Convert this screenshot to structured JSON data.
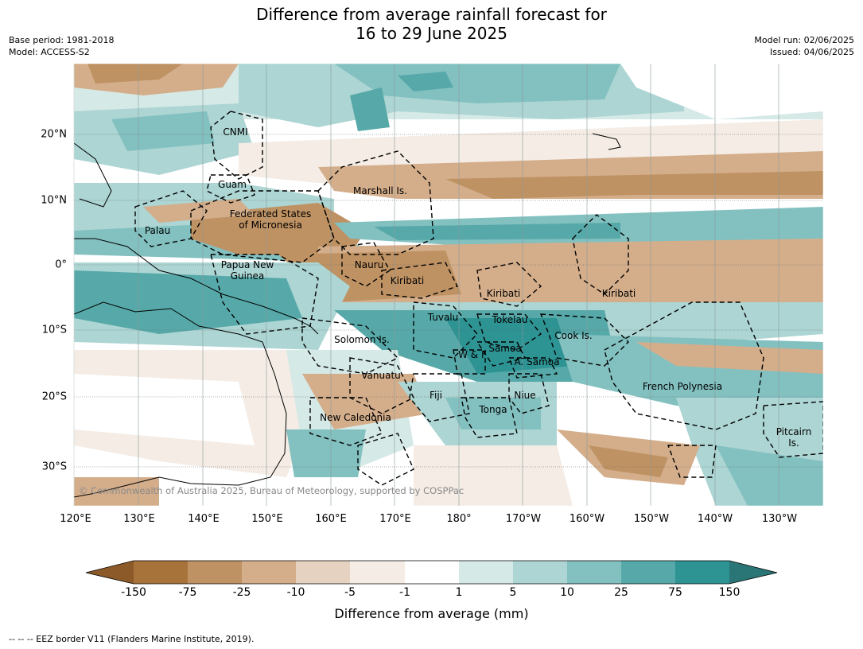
{
  "title": {
    "line1": "Difference from average rainfall forecast for",
    "line2": "16 to 29 June 2025"
  },
  "meta": {
    "base_period": "Base period: 1981-2018",
    "model": "Model: ACCESS-S2",
    "model_run": "Model run: 02/06/2025",
    "issued": "Issued: 04/06/2025"
  },
  "axes": {
    "lon_labels": [
      "120°E",
      "130°E",
      "140°E",
      "150°E",
      "160°E",
      "170°E",
      "180°",
      "170°W",
      "160°W",
      "150°W",
      "140°W",
      "130°W"
    ],
    "lat_labels": [
      "20°N",
      "10°N",
      "0°",
      "10°S",
      "20°S",
      "30°S"
    ]
  },
  "places": [
    {
      "name": "CNMI"
    },
    {
      "name": "Guam"
    },
    {
      "name": "Marshall Is."
    },
    {
      "name": "Federated States\nof Micronesia"
    },
    {
      "name": "Palau"
    },
    {
      "name": "Nauru"
    },
    {
      "name": "Papua New\nGuinea"
    },
    {
      "name": "Kiribati"
    },
    {
      "name": "Kiribati"
    },
    {
      "name": "Kiribati"
    },
    {
      "name": "Tuvalu"
    },
    {
      "name": "Tokelau"
    },
    {
      "name": "Solomon Is."
    },
    {
      "name": "Cook Is."
    },
    {
      "name": "Samoa"
    },
    {
      "name": "W & F"
    },
    {
      "name": "A. Samoa"
    },
    {
      "name": "Vanuatu"
    },
    {
      "name": "Fiji"
    },
    {
      "name": "Niue"
    },
    {
      "name": "French Polynesia"
    },
    {
      "name": "Tonga"
    },
    {
      "name": "New Caledonia"
    },
    {
      "name": "Pitcairn\nIs."
    }
  ],
  "copyright": "© Commonwealth of Australia 2025, Bureau of Meteorology, supported by COSPPac",
  "colorbar": {
    "ticks": [
      "-150",
      "-75",
      "-25",
      "-10",
      "-5",
      "-1",
      "1",
      "5",
      "10",
      "25",
      "75",
      "150"
    ],
    "colors": [
      "#8c5a28",
      "#a8733a",
      "#bf9263",
      "#d4ae8b",
      "#e6d2c0",
      "#f4ece5",
      "#ffffff",
      "#d5e9e7",
      "#acd5d3",
      "#83c0c0",
      "#57a9a9",
      "#2e9393",
      "#2a7575"
    ],
    "label": "Difference from average (mm)"
  },
  "footnote": "-- -- -- EEZ border V11 (Flanders Marine Institute, 2019)."
}
